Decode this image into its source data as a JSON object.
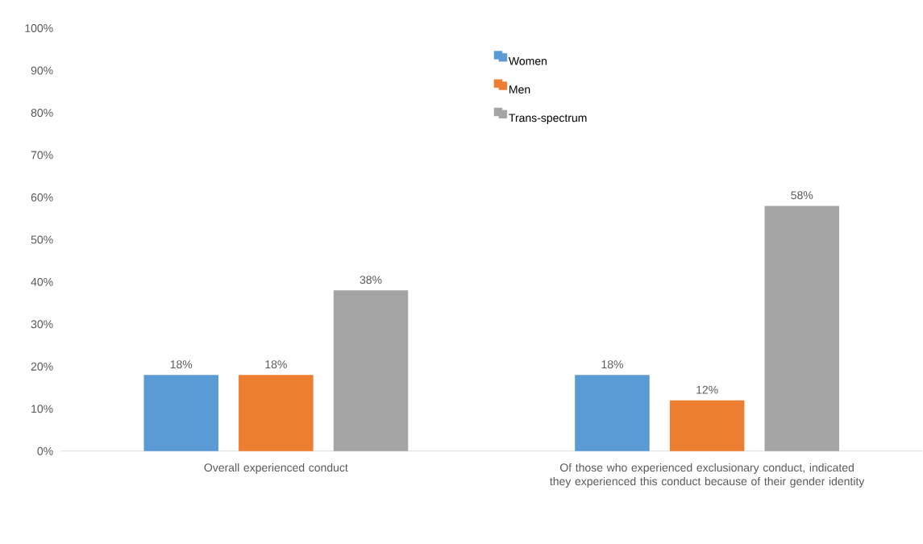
{
  "chart_data": {
    "type": "bar",
    "categories": [
      "Overall experienced conduct",
      "Of those who experienced exclusionary conduct, indicated they experienced this conduct because of their gender identity"
    ],
    "series": [
      {
        "name": "Women",
        "color": "#5b9bd5",
        "values": [
          18,
          18
        ],
        "value_labels": [
          "18%",
          "18%"
        ]
      },
      {
        "name": "Men",
        "color": "#ed7d31",
        "values": [
          18,
          12
        ],
        "value_labels": [
          "18%",
          "12%"
        ]
      },
      {
        "name": "Trans-spectrum",
        "color": "#a5a5a5",
        "values": [
          38,
          58
        ],
        "value_labels": [
          "38%",
          "58%"
        ]
      }
    ],
    "ylim": [
      0,
      100
    ],
    "yticks": [
      {
        "value": 0,
        "label": "0%"
      },
      {
        "value": 10,
        "label": "10%"
      },
      {
        "value": 20,
        "label": "20%"
      },
      {
        "value": 30,
        "label": "30%"
      },
      {
        "value": 40,
        "label": "40%"
      },
      {
        "value": 50,
        "label": "50%"
      },
      {
        "value": 60,
        "label": "60%"
      },
      {
        "value": 70,
        "label": "70%"
      },
      {
        "value": 80,
        "label": "80%"
      },
      {
        "value": 90,
        "label": "90%"
      },
      {
        "value": 100,
        "label": "100%"
      }
    ],
    "grid": false,
    "legend": "top"
  }
}
